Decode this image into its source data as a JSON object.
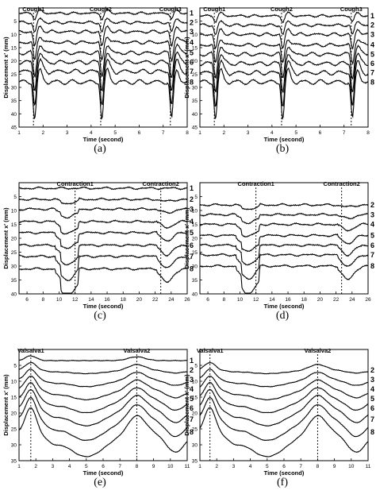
{
  "figure": {
    "axis_labels": {
      "y": "Displacement x' (mm)",
      "x": "Time (second)"
    },
    "panels": [
      {
        "id": "a",
        "caption": "(a)",
        "xlim": [
          1,
          8
        ],
        "ylim": [
          0,
          45
        ],
        "xticks": [
          1,
          2,
          3,
          4,
          5,
          6,
          7,
          8
        ],
        "yticks": [
          5,
          10,
          15,
          20,
          25,
          30,
          35,
          40,
          45
        ],
        "events": [
          {
            "label": "Cough1",
            "x": 1.6
          },
          {
            "label": "Cough2",
            "x": 4.4
          },
          {
            "label": "Cough3",
            "x": 7.3
          }
        ],
        "curve_labels": [
          "1",
          "2",
          "3",
          "4",
          "5",
          "6",
          "7",
          "8"
        ],
        "baselines": [
          2,
          5.5,
          9,
          13,
          17,
          20.5,
          24,
          28
        ],
        "pattern": "cough"
      },
      {
        "id": "b",
        "caption": "(b)",
        "xlim": [
          1,
          8
        ],
        "ylim": [
          0,
          45
        ],
        "xticks": [
          1,
          2,
          3,
          4,
          5,
          6,
          7,
          8
        ],
        "yticks": [
          5,
          10,
          15,
          20,
          25,
          30,
          35,
          40,
          45
        ],
        "events": [
          {
            "label": "Cough1",
            "x": 1.6
          },
          {
            "label": "Cough2",
            "x": 4.4
          },
          {
            "label": "Cough3",
            "x": 7.3
          }
        ],
        "curve_labels": [
          "1",
          "2",
          "3",
          "4",
          "5",
          "6",
          "7",
          "8"
        ],
        "baselines": [
          3,
          6.5,
          10,
          14,
          17.5,
          21,
          24.5,
          28
        ],
        "pattern": "cough"
      },
      {
        "id": "c",
        "caption": "(c)",
        "xlim": [
          5,
          26
        ],
        "ylim": [
          0,
          40
        ],
        "xticks": [
          6,
          8,
          10,
          12,
          14,
          16,
          18,
          20,
          22,
          24,
          26
        ],
        "yticks": [
          5,
          10,
          15,
          20,
          25,
          30,
          35,
          40
        ],
        "events": [
          {
            "label": "Contraction1",
            "x": 12
          },
          {
            "label": "Contraction2",
            "x": 22.7
          }
        ],
        "curve_labels": [
          "1",
          "2",
          "3",
          "4",
          "5",
          "6",
          "7",
          "8"
        ],
        "baselines": [
          2,
          6,
          9.5,
          14,
          18,
          22.5,
          26.5,
          31
        ],
        "pattern": "contraction"
      },
      {
        "id": "d",
        "caption": "(d)",
        "xlim": [
          5,
          26
        ],
        "ylim": [
          0,
          40
        ],
        "xticks": [
          6,
          8,
          10,
          12,
          14,
          16,
          18,
          20,
          22,
          24,
          26
        ],
        "yticks": [
          5,
          10,
          15,
          20,
          25,
          30,
          35,
          40
        ],
        "events": [
          {
            "label": "Contraction1",
            "x": 12
          },
          {
            "label": "Contraction2",
            "x": 22.7
          }
        ],
        "curve_labels": [
          "2",
          "3",
          "4",
          "5",
          "6",
          "7",
          "8"
        ],
        "baselines": [
          8,
          11.5,
          15,
          19,
          22.5,
          26,
          30
        ],
        "pattern": "contraction"
      },
      {
        "id": "e",
        "caption": "(e)",
        "xlim": [
          1,
          11
        ],
        "ylim": [
          0,
          35
        ],
        "xticks": [
          1,
          2,
          3,
          4,
          5,
          6,
          7,
          8,
          9,
          10,
          11
        ],
        "yticks": [
          5,
          10,
          15,
          20,
          25,
          30,
          35
        ],
        "events": [
          {
            "label": "Valsalva1",
            "x": 1.7
          },
          {
            "label": "Valsalva2",
            "x": 8
          }
        ],
        "curve_labels": [
          "1",
          "2",
          "3",
          "4",
          "5",
          "6",
          "7",
          "8"
        ],
        "baselines": [
          3.5,
          6.5,
          9.5,
          12.5,
          15.5,
          18.5,
          22,
          26
        ],
        "pattern": "valsalva"
      },
      {
        "id": "f",
        "caption": "(f)",
        "xlim": [
          1,
          11
        ],
        "ylim": [
          0,
          35
        ],
        "xticks": [
          1,
          2,
          3,
          4,
          5,
          6,
          7,
          8,
          9,
          10,
          11
        ],
        "yticks": [
          5,
          10,
          15,
          20,
          25,
          30,
          35
        ],
        "events": [
          {
            "label": "Valsalva1",
            "x": 1.6
          },
          {
            "label": "Valsalva2",
            "x": 8
          }
        ],
        "curve_labels": [
          "2",
          "3",
          "4",
          "5",
          "6",
          "7",
          "8"
        ],
        "baselines": [
          6.5,
          9.5,
          12.5,
          15.5,
          18.5,
          22,
          26
        ],
        "pattern": "valsalva"
      }
    ]
  },
  "chart_data": [
    {
      "type": "line",
      "panel": "a",
      "xlabel": "Time (second)",
      "ylabel": "Displacement x' (mm)",
      "xlim": [
        1,
        8
      ],
      "ylim": [
        0,
        45
      ],
      "y_inverted": true,
      "series": [
        {
          "name": "1"
        },
        {
          "name": "2"
        },
        {
          "name": "3"
        },
        {
          "name": "4"
        },
        {
          "name": "5"
        },
        {
          "name": "6"
        },
        {
          "name": "7"
        },
        {
          "name": "8"
        }
      ],
      "annotations": [
        "Cough1",
        "Cough2",
        "Cough3"
      ]
    },
    {
      "type": "line",
      "panel": "b",
      "xlabel": "Time (second)",
      "ylabel": "Displacement x' (mm)",
      "xlim": [
        1,
        8
      ],
      "ylim": [
        0,
        45
      ],
      "y_inverted": true,
      "series": [
        {
          "name": "1"
        },
        {
          "name": "2"
        },
        {
          "name": "3"
        },
        {
          "name": "4"
        },
        {
          "name": "5"
        },
        {
          "name": "6"
        },
        {
          "name": "7"
        },
        {
          "name": "8"
        }
      ],
      "annotations": [
        "Cough1",
        "Cough2",
        "Cough3"
      ]
    },
    {
      "type": "line",
      "panel": "c",
      "xlabel": "Time (second)",
      "ylabel": "Displacement x' (mm)",
      "xlim": [
        5,
        26
      ],
      "ylim": [
        0,
        40
      ],
      "y_inverted": true,
      "series": [
        {
          "name": "1"
        },
        {
          "name": "2"
        },
        {
          "name": "3"
        },
        {
          "name": "4"
        },
        {
          "name": "5"
        },
        {
          "name": "6"
        },
        {
          "name": "7"
        },
        {
          "name": "8"
        }
      ],
      "annotations": [
        "Contraction1",
        "Contraction2"
      ]
    },
    {
      "type": "line",
      "panel": "d",
      "xlabel": "Time (second)",
      "ylabel": "Displacement x' (mm)",
      "xlim": [
        5,
        26
      ],
      "ylim": [
        0,
        40
      ],
      "y_inverted": true,
      "series": [
        {
          "name": "2"
        },
        {
          "name": "3"
        },
        {
          "name": "4"
        },
        {
          "name": "5"
        },
        {
          "name": "6"
        },
        {
          "name": "7"
        },
        {
          "name": "8"
        }
      ],
      "annotations": [
        "Contraction1",
        "Contraction2"
      ]
    },
    {
      "type": "line",
      "panel": "e",
      "xlabel": "Time (second)",
      "ylabel": "Displacement x' (mm)",
      "xlim": [
        1,
        11
      ],
      "ylim": [
        0,
        35
      ],
      "y_inverted": true,
      "series": [
        {
          "name": "1"
        },
        {
          "name": "2"
        },
        {
          "name": "3"
        },
        {
          "name": "4"
        },
        {
          "name": "5"
        },
        {
          "name": "6"
        },
        {
          "name": "7"
        },
        {
          "name": "8"
        }
      ],
      "annotations": [
        "Valsalva1",
        "Valsalva2"
      ]
    },
    {
      "type": "line",
      "panel": "f",
      "xlabel": "Time (second)",
      "ylabel": "Displacement x' (mm)",
      "xlim": [
        1,
        11
      ],
      "ylim": [
        0,
        35
      ],
      "y_inverted": true,
      "series": [
        {
          "name": "2"
        },
        {
          "name": "3"
        },
        {
          "name": "4"
        },
        {
          "name": "5"
        },
        {
          "name": "6"
        },
        {
          "name": "7"
        },
        {
          "name": "8"
        }
      ],
      "annotations": [
        "Valsalva1",
        "Valsalva2"
      ]
    }
  ]
}
